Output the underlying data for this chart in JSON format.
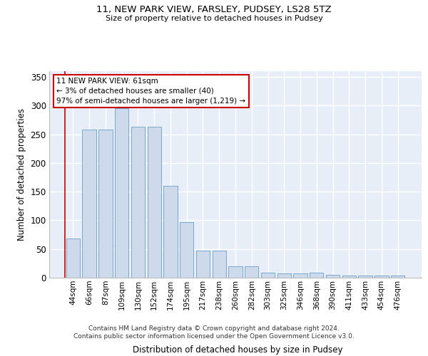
{
  "title1": "11, NEW PARK VIEW, FARSLEY, PUDSEY, LS28 5TZ",
  "title2": "Size of property relative to detached houses in Pudsey",
  "xlabel": "Distribution of detached houses by size in Pudsey",
  "ylabel": "Number of detached properties",
  "categories": [
    "44sqm",
    "66sqm",
    "87sqm",
    "109sqm",
    "130sqm",
    "152sqm",
    "174sqm",
    "195sqm",
    "217sqm",
    "238sqm",
    "260sqm",
    "282sqm",
    "303sqm",
    "325sqm",
    "346sqm",
    "368sqm",
    "390sqm",
    "411sqm",
    "433sqm",
    "454sqm",
    "476sqm"
  ],
  "values": [
    68,
    258,
    258,
    295,
    263,
    263,
    160,
    97,
    47,
    47,
    20,
    20,
    9,
    7,
    7,
    9,
    5,
    4,
    4,
    4,
    4
  ],
  "bar_color": "#ccdaeb",
  "bar_edge_color": "#6a9ec5",
  "background_color": "#e8eef8",
  "grid_color": "#ffffff",
  "annotation_text": "11 NEW PARK VIEW: 61sqm\n← 3% of detached houses are smaller (40)\n97% of semi-detached houses are larger (1,219) →",
  "annotation_box_color": "#ffffff",
  "annotation_box_edge_color": "#cc0000",
  "footer_text": "Contains HM Land Registry data © Crown copyright and database right 2024.\nContains public sector information licensed under the Open Government Licence v3.0.",
  "ylim": [
    0,
    360
  ],
  "yticks": [
    0,
    50,
    100,
    150,
    200,
    250,
    300,
    350
  ]
}
